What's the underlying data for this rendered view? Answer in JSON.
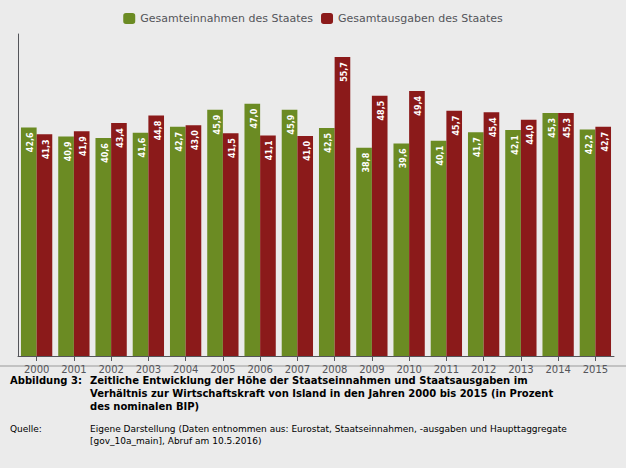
{
  "chart_data": {
    "type": "bar",
    "categories": [
      "2000",
      "2001",
      "2002",
      "2003",
      "2004",
      "2005",
      "2006",
      "2007",
      "2008",
      "2009",
      "2010",
      "2011",
      "2012",
      "2013",
      "2014",
      "2015"
    ],
    "series": [
      {
        "name": "Gesamteinnahmen des Staates",
        "color": "#6B8B23",
        "values": [
          42.6,
          40.9,
          40.6,
          41.6,
          42.7,
          45.9,
          47.0,
          45.9,
          42.5,
          38.8,
          39.6,
          40.1,
          41.7,
          42.1,
          45.3,
          42.2
        ],
        "value_labels": [
          "42,6",
          "40,9",
          "40,6",
          "41,6",
          "42,7",
          "45,9",
          "47,0",
          "45,9",
          "42,5",
          "38,8",
          "39,6",
          "40,1",
          "41,7",
          "42,1",
          "45,3",
          "42,2"
        ]
      },
      {
        "name": "Gesamtausgaben des Staates",
        "color": "#8B1A1A",
        "values": [
          41.3,
          41.9,
          43.4,
          44.8,
          43.0,
          41.5,
          41.1,
          41.0,
          55.7,
          48.5,
          49.4,
          45.7,
          45.4,
          44.0,
          45.3,
          42.7
        ],
        "value_labels": [
          "41,3",
          "41,9",
          "43,4",
          "44,8",
          "43,0",
          "41,5",
          "41,1",
          "41,0",
          "55,7",
          "48,5",
          "49,4",
          "45,7",
          "45,4",
          "44,0",
          "45,3",
          "42,7"
        ]
      }
    ],
    "ylim": [
      0,
      60
    ],
    "legend": "top",
    "grid": false,
    "data_labels": true,
    "tick_labels": "x",
    "annotations": [
      "Abbildung 3:",
      "Zeitliche Entwicklung der Höhe der Staatseinnahmen und Staatsausgaben im\nVerhältnis zur Wirtschaftskraft von Island in den Jahren 2000 bis 2015 (in Prozent\ndes nominalen BIP)",
      "Quelle:",
      "Eigene Darstellung (Daten entnommen aus: Eurostat, Staatseinnahmen, -ausgaben und Haupttaggregate\n[gov_10a_main], Abruf am 10.5.2016)"
    ]
  }
}
